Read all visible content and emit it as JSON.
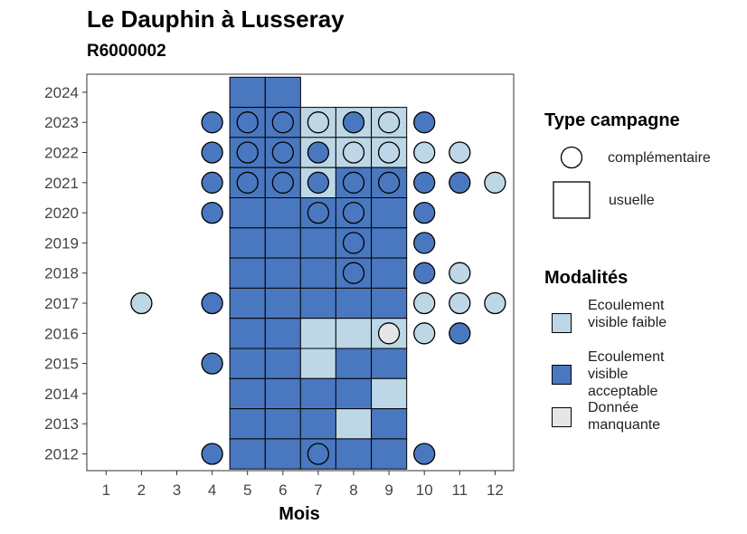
{
  "chart_data": {
    "type": "heatmap",
    "title": "Le Dauphin à Lusseray",
    "subtitle": "R6000002",
    "xlabel": "Mois",
    "ylabel": "",
    "x_ticks": [
      "1",
      "2",
      "3",
      "4",
      "5",
      "6",
      "7",
      "8",
      "9",
      "10",
      "11",
      "12"
    ],
    "y_ticks": [
      "2012",
      "2013",
      "2014",
      "2015",
      "2016",
      "2017",
      "2018",
      "2019",
      "2020",
      "2021",
      "2022",
      "2023",
      "2024"
    ],
    "xlim": [
      0.5,
      12.5
    ],
    "ylim": [
      2011.5,
      2024.9
    ],
    "colors": {
      "Ecoulement visible faible": "#bdd7e7",
      "Ecoulement visible acceptable": "#4a78c0",
      "Donnée manquante": "#e6e6e6"
    },
    "legend": {
      "shape_title": "Type campagne",
      "shapes": [
        {
          "shape": "circle",
          "label": "complémentaire"
        },
        {
          "shape": "square",
          "label": "usuelle"
        }
      ],
      "fill_title": "Modalités",
      "fills": [
        {
          "key": "Ecoulement visible faible",
          "label": "Ecoulement visible faible"
        },
        {
          "key": "Ecoulement visible acceptable",
          "label": "Ecoulement visible acceptable"
        },
        {
          "key": "Donnée manquante",
          "label": "Donnée manquante"
        }
      ]
    },
    "squares": [
      {
        "year": 2024,
        "months": [
          5,
          6
        ],
        "values": [
          "A",
          "A"
        ]
      },
      {
        "year": 2023,
        "months": [
          5,
          6,
          7,
          8,
          9
        ],
        "values": [
          "A",
          "A",
          "F",
          "F",
          "F"
        ]
      },
      {
        "year": 2022,
        "months": [
          5,
          6,
          7,
          8,
          9
        ],
        "values": [
          "A",
          "A",
          "F",
          "F",
          "F"
        ]
      },
      {
        "year": 2021,
        "months": [
          5,
          6,
          7,
          8,
          9
        ],
        "values": [
          "A",
          "A",
          "F",
          "A",
          "A"
        ]
      },
      {
        "year": 2020,
        "months": [
          5,
          6,
          7,
          8,
          9
        ],
        "values": [
          "A",
          "A",
          "A",
          "A",
          "A"
        ]
      },
      {
        "year": 2019,
        "months": [
          5,
          6,
          7,
          8,
          9
        ],
        "values": [
          "A",
          "A",
          "A",
          "A",
          "A"
        ]
      },
      {
        "year": 2018,
        "months": [
          5,
          6,
          7,
          8,
          9
        ],
        "values": [
          "A",
          "A",
          "A",
          "A",
          "A"
        ]
      },
      {
        "year": 2017,
        "months": [
          5,
          6,
          7,
          8,
          9
        ],
        "values": [
          "A",
          "A",
          "A",
          "A",
          "A"
        ]
      },
      {
        "year": 2016,
        "months": [
          5,
          6,
          7,
          8,
          9
        ],
        "values": [
          "A",
          "A",
          "F",
          "F",
          "F"
        ]
      },
      {
        "year": 2015,
        "months": [
          5,
          6,
          7,
          8,
          9
        ],
        "values": [
          "A",
          "A",
          "F",
          "A",
          "A"
        ]
      },
      {
        "year": 2014,
        "months": [
          5,
          6,
          7,
          8,
          9
        ],
        "values": [
          "A",
          "A",
          "A",
          "A",
          "F"
        ]
      },
      {
        "year": 2013,
        "months": [
          5,
          6,
          7,
          8,
          9
        ],
        "values": [
          "A",
          "A",
          "A",
          "F",
          "A"
        ]
      },
      {
        "year": 2012,
        "months": [
          5,
          6,
          7,
          8,
          9
        ],
        "values": [
          "A",
          "A",
          "A",
          "A",
          "A"
        ]
      }
    ],
    "circles": [
      {
        "year": 2023,
        "month": 4,
        "value": "A"
      },
      {
        "year": 2023,
        "month": 5,
        "value": "A"
      },
      {
        "year": 2023,
        "month": 6,
        "value": "A"
      },
      {
        "year": 2023,
        "month": 7,
        "value": "F"
      },
      {
        "year": 2023,
        "month": 8,
        "value": "A"
      },
      {
        "year": 2023,
        "month": 9,
        "value": "F"
      },
      {
        "year": 2023,
        "month": 10,
        "value": "A"
      },
      {
        "year": 2022,
        "month": 4,
        "value": "A"
      },
      {
        "year": 2022,
        "month": 5,
        "value": "A"
      },
      {
        "year": 2022,
        "month": 6,
        "value": "A"
      },
      {
        "year": 2022,
        "month": 7,
        "value": "A"
      },
      {
        "year": 2022,
        "month": 8,
        "value": "F"
      },
      {
        "year": 2022,
        "month": 9,
        "value": "F"
      },
      {
        "year": 2022,
        "month": 10,
        "value": "F"
      },
      {
        "year": 2022,
        "month": 11,
        "value": "F"
      },
      {
        "year": 2021,
        "month": 4,
        "value": "A"
      },
      {
        "year": 2021,
        "month": 5,
        "value": "A"
      },
      {
        "year": 2021,
        "month": 6,
        "value": "A"
      },
      {
        "year": 2021,
        "month": 7,
        "value": "A"
      },
      {
        "year": 2021,
        "month": 8,
        "value": "A"
      },
      {
        "year": 2021,
        "month": 9,
        "value": "A"
      },
      {
        "year": 2021,
        "month": 10,
        "value": "A"
      },
      {
        "year": 2021,
        "month": 11,
        "value": "A"
      },
      {
        "year": 2021,
        "month": 12,
        "value": "F"
      },
      {
        "year": 2020,
        "month": 4,
        "value": "A"
      },
      {
        "year": 2020,
        "month": 7,
        "value": "A"
      },
      {
        "year": 2020,
        "month": 8,
        "value": "A"
      },
      {
        "year": 2020,
        "month": 10,
        "value": "A"
      },
      {
        "year": 2019,
        "month": 8,
        "value": "A"
      },
      {
        "year": 2019,
        "month": 10,
        "value": "A"
      },
      {
        "year": 2018,
        "month": 8,
        "value": "A"
      },
      {
        "year": 2018,
        "month": 10,
        "value": "A"
      },
      {
        "year": 2018,
        "month": 11,
        "value": "F"
      },
      {
        "year": 2017,
        "month": 2,
        "value": "F"
      },
      {
        "year": 2017,
        "month": 4,
        "value": "A"
      },
      {
        "year": 2017,
        "month": 10,
        "value": "F"
      },
      {
        "year": 2017,
        "month": 11,
        "value": "F"
      },
      {
        "year": 2017,
        "month": 12,
        "value": "F"
      },
      {
        "year": 2016,
        "month": 9,
        "value": "M"
      },
      {
        "year": 2016,
        "month": 10,
        "value": "F"
      },
      {
        "year": 2016,
        "month": 11,
        "value": "A"
      },
      {
        "year": 2015,
        "month": 4,
        "value": "A"
      },
      {
        "year": 2012,
        "month": 4,
        "value": "A"
      },
      {
        "year": 2012,
        "month": 7,
        "value": "A"
      },
      {
        "year": 2012,
        "month": 10,
        "value": "A"
      }
    ],
    "value_codes": {
      "A": "Ecoulement visible acceptable",
      "F": "Ecoulement visible faible",
      "M": "Donnée manquante"
    }
  }
}
